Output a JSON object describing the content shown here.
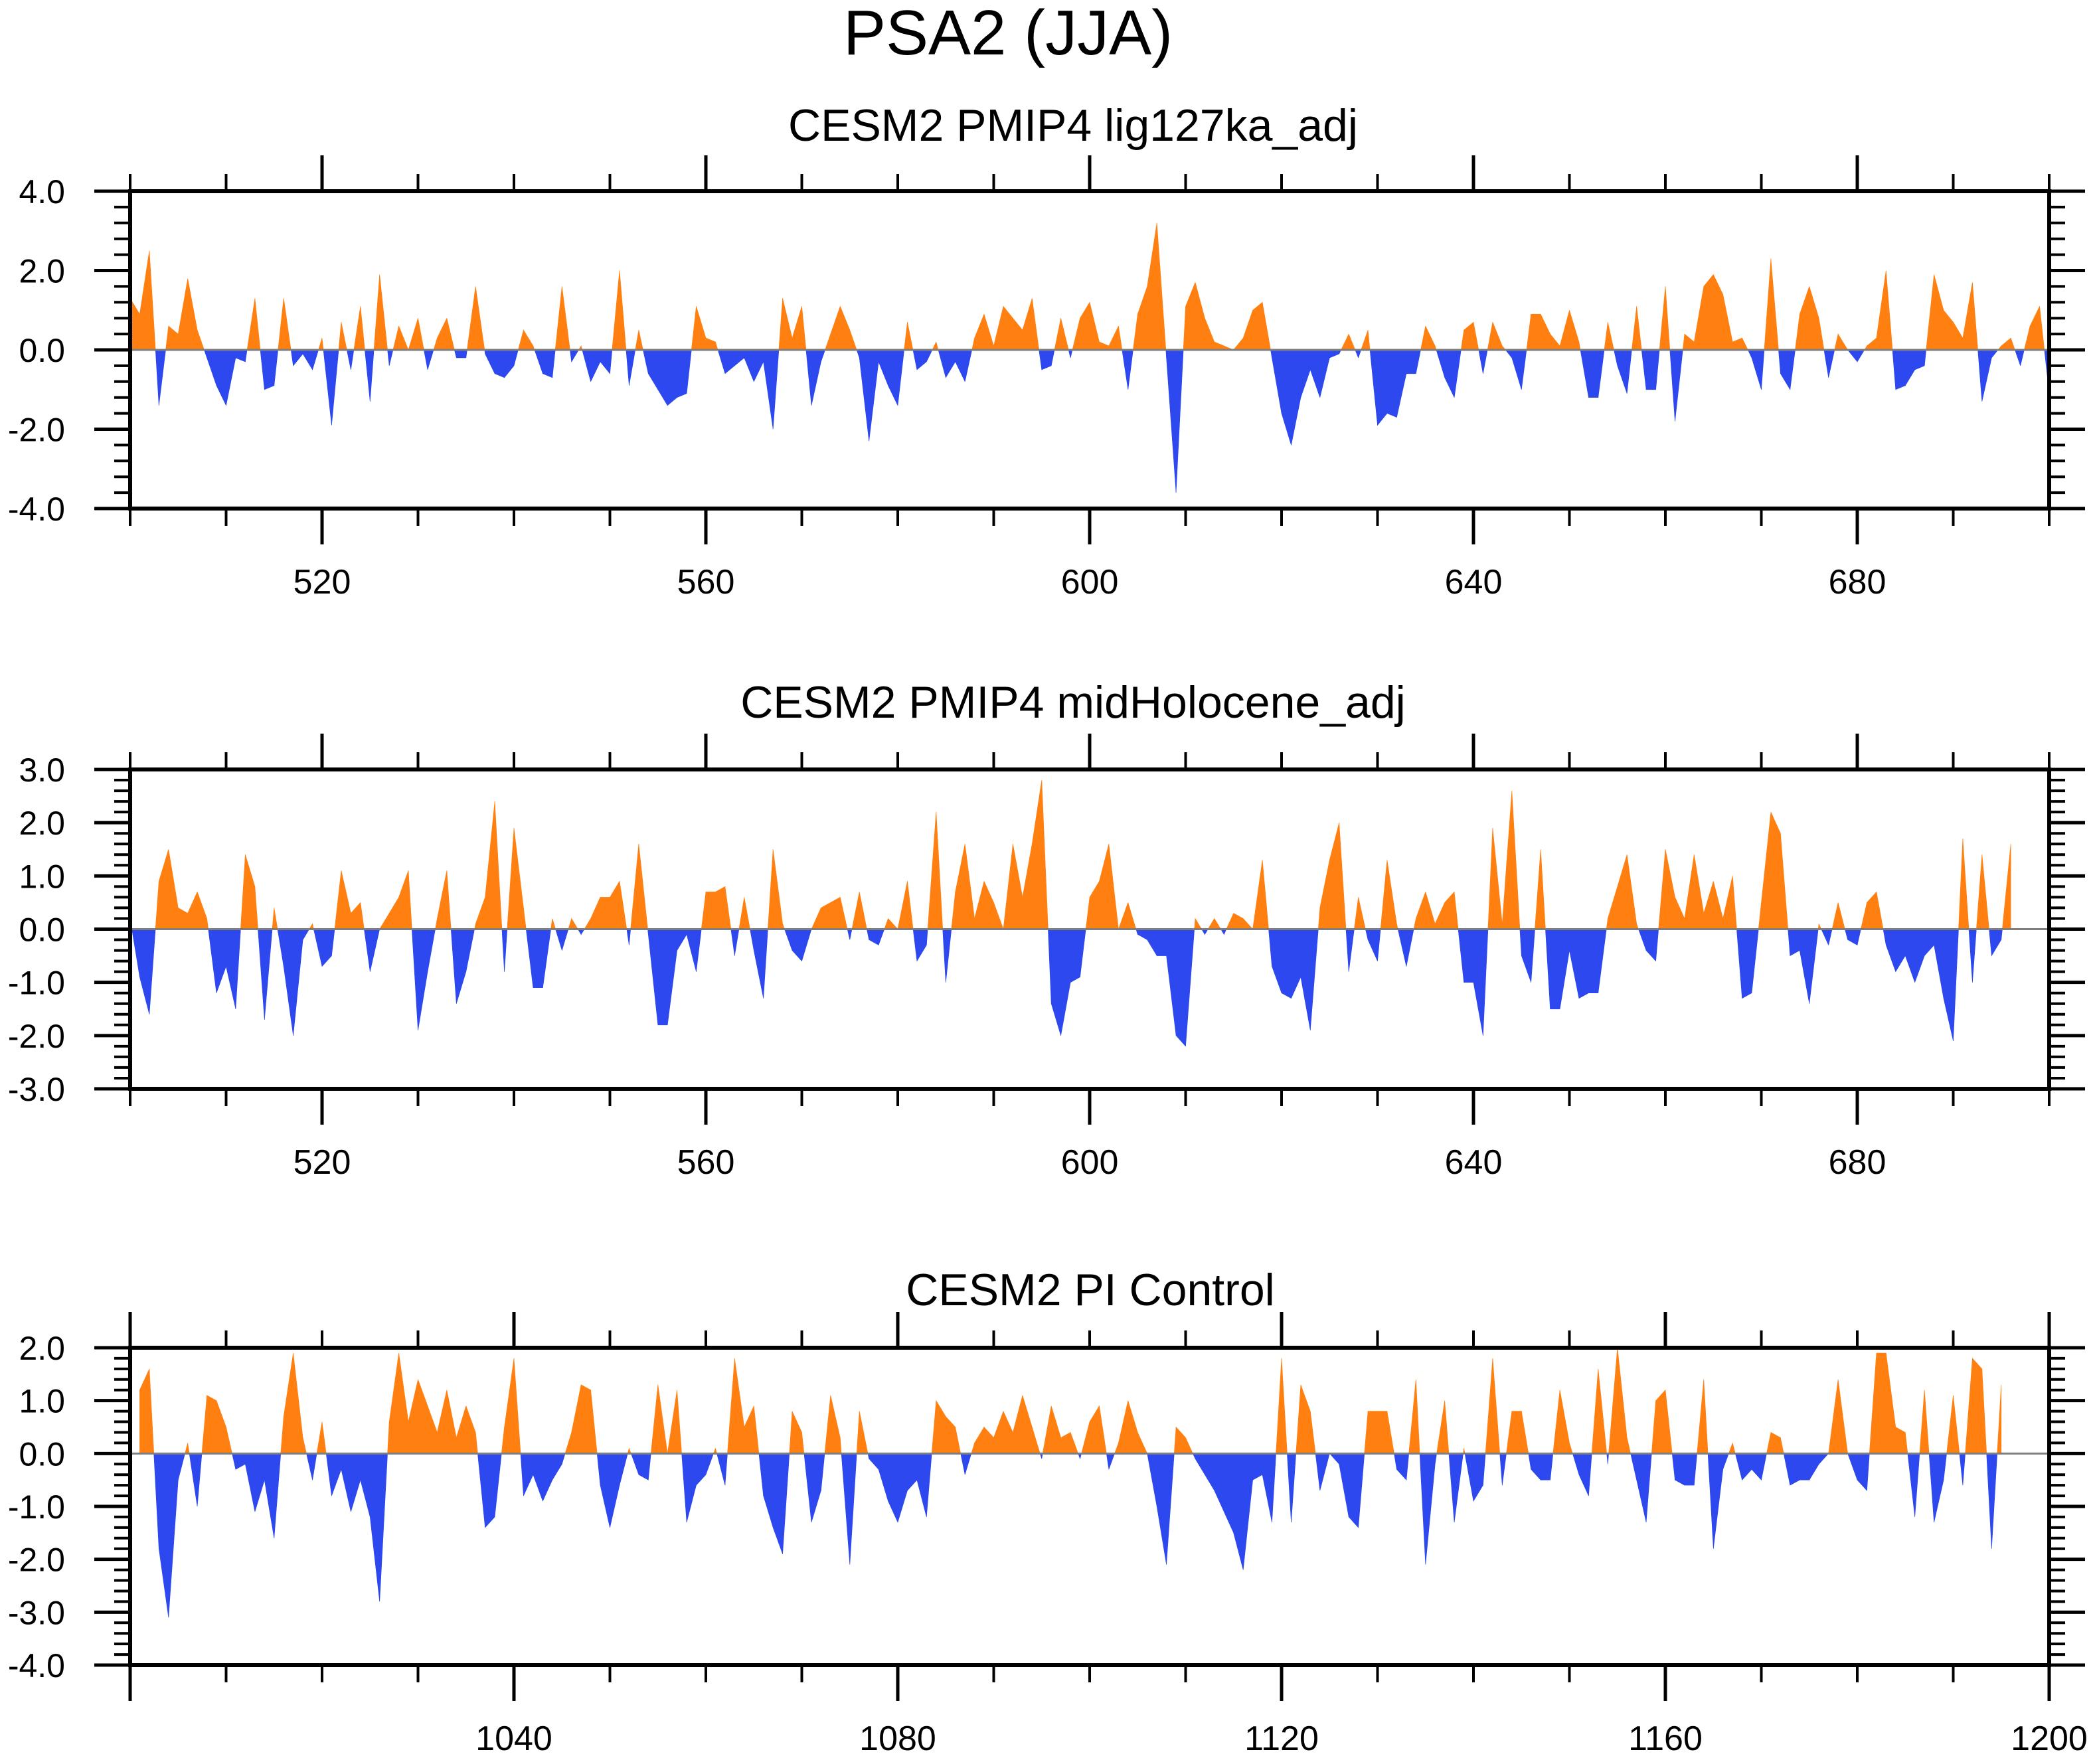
{
  "title": "PSA2 (JJA)",
  "colors": {
    "positive": "#FF8011",
    "negative": "#2C48EE",
    "zero_line": "#7F7F7F",
    "axis": "#000000"
  },
  "chart_data": [
    {
      "type": "area",
      "title": "CESM2 PMIP4 lig127ka_adj",
      "xlabel": "",
      "ylabel": "",
      "xlim": [
        500,
        700
      ],
      "ylim": [
        -4,
        4
      ],
      "xticks": [
        520,
        560,
        600,
        640,
        680
      ],
      "xtick_labels": [
        "520",
        "560",
        "600",
        "640",
        "680"
      ],
      "yticks": [
        4,
        2,
        0,
        -2,
        -4
      ],
      "ytick_labels": [
        "4.0",
        "2.0",
        "0.0",
        "-2.0",
        "-4.0"
      ],
      "x_start": 500,
      "x_step": 1,
      "values": [
        1.3,
        0.9,
        2.5,
        -1.4,
        0.6,
        0.4,
        1.8,
        0.5,
        -0.2,
        -0.9,
        -1.4,
        -0.2,
        -0.3,
        1.3,
        -1.0,
        -0.9,
        1.3,
        -0.4,
        -0.1,
        -0.5,
        0.3,
        -1.9,
        0.7,
        -0.5,
        1.1,
        -1.3,
        1.9,
        -0.4,
        0.6,
        0.0,
        0.8,
        -0.5,
        0.3,
        0.8,
        -0.2,
        -0.2,
        1.6,
        -0.1,
        -0.6,
        -0.7,
        -0.4,
        0.5,
        0.1,
        -0.6,
        -0.7,
        1.6,
        -0.3,
        0.1,
        -0.8,
        -0.3,
        -0.6,
        2.0,
        -0.9,
        0.5,
        -0.6,
        -1.0,
        -1.4,
        -1.2,
        -1.1,
        1.1,
        0.3,
        0.2,
        -0.6,
        -0.4,
        -0.2,
        -0.8,
        -0.3,
        -2.0,
        1.3,
        0.3,
        1.1,
        -1.4,
        -0.3,
        0.4,
        1.1,
        0.5,
        -0.2,
        -2.3,
        -0.3,
        -0.9,
        -1.4,
        0.7,
        -0.5,
        -0.3,
        0.2,
        -0.7,
        -0.3,
        -0.8,
        0.3,
        0.9,
        0.1,
        1.1,
        0.8,
        0.5,
        1.3,
        -0.5,
        -0.4,
        0.8,
        -0.2,
        0.8,
        1.2,
        0.2,
        0.1,
        0.6,
        -1.0,
        0.9,
        1.6,
        3.2,
        -0.2,
        -3.6,
        1.1,
        1.7,
        0.8,
        0.2,
        0.1,
        0.0,
        0.3,
        1.0,
        1.2,
        -0.2,
        -1.6,
        -2.4,
        -1.2,
        -0.5,
        -1.2,
        -0.2,
        -0.1,
        0.4,
        -0.2,
        0.5,
        -1.9,
        -1.6,
        -1.7,
        -0.6,
        -0.6,
        0.6,
        0.1,
        -0.7,
        -1.2,
        0.5,
        0.7,
        -0.6,
        0.7,
        0.1,
        -0.2,
        -1.0,
        0.9,
        0.9,
        0.4,
        0.1,
        1.0,
        0.2,
        -1.2,
        -1.2,
        0.7,
        -0.4,
        -1.1,
        1.1,
        -1.0,
        -1.0,
        1.6,
        -1.8,
        0.4,
        0.2,
        1.6,
        1.9,
        1.4,
        0.2,
        0.3,
        -0.2,
        -1.0,
        2.3,
        -0.6,
        -1.0,
        0.9,
        1.6,
        0.8,
        -0.7,
        0.4,
        0.0,
        -0.3,
        0.1,
        0.3,
        2.0,
        -1.0,
        -0.9,
        -0.5,
        -0.4,
        1.9,
        1.0,
        0.7,
        0.3,
        1.7,
        -1.3,
        -0.2,
        0.1,
        0.3,
        -0.4,
        0.6,
        1.1,
        -1.1
      ]
    },
    {
      "type": "area",
      "title": "CESM2 PMIP4 midHolocene_adj",
      "xlabel": "",
      "ylabel": "",
      "xlim": [
        500,
        700
      ],
      "ylim": [
        -3,
        3
      ],
      "xticks": [
        520,
        560,
        600,
        640,
        680
      ],
      "xtick_labels": [
        "520",
        "560",
        "600",
        "640",
        "680"
      ],
      "yticks": [
        3,
        2,
        1,
        0,
        -1,
        -2,
        -3
      ],
      "ytick_labels": [
        "3.0",
        "2.0",
        "1.0",
        "0.0",
        "-1.0",
        "-2.0",
        "-3.0"
      ],
      "x_start": 500,
      "x_step": 1,
      "values": [
        0.2,
        -0.9,
        -1.6,
        0.9,
        1.5,
        0.4,
        0.3,
        0.7,
        0.2,
        -1.2,
        -0.7,
        -1.5,
        1.4,
        0.8,
        -1.7,
        0.4,
        -0.7,
        -2.0,
        -0.2,
        0.1,
        -0.7,
        -0.5,
        1.1,
        0.3,
        0.5,
        -0.8,
        0.0,
        0.3,
        0.6,
        1.1,
        -1.9,
        -0.8,
        0.2,
        1.1,
        -1.4,
        -0.8,
        0.1,
        0.6,
        2.4,
        -0.8,
        1.9,
        0.4,
        -1.1,
        -1.1,
        0.2,
        -0.4,
        0.2,
        -0.1,
        0.2,
        0.6,
        0.6,
        0.9,
        -0.3,
        1.6,
        -0.1,
        -1.8,
        -1.8,
        -0.4,
        -0.1,
        -0.8,
        0.7,
        0.7,
        0.8,
        -0.5,
        0.6,
        -0.4,
        -1.3,
        1.5,
        0.1,
        -0.4,
        -0.6,
        0.0,
        0.4,
        0.5,
        0.6,
        -0.2,
        0.7,
        -0.2,
        -0.3,
        0.2,
        0.0,
        0.9,
        -0.6,
        -0.3,
        2.2,
        -1.0,
        0.7,
        1.6,
        0.2,
        0.9,
        0.5,
        0.0,
        1.6,
        0.6,
        1.6,
        2.8,
        -1.4,
        -2.0,
        -1.0,
        -0.9,
        0.6,
        0.9,
        1.6,
        0.0,
        0.5,
        -0.1,
        -0.2,
        -0.5,
        -0.5,
        -2.0,
        -2.2,
        0.2,
        -0.1,
        0.2,
        -0.1,
        0.3,
        0.2,
        0.0,
        1.3,
        -0.7,
        -1.2,
        -1.3,
        -0.9,
        -1.9,
        0.4,
        1.3,
        2.0,
        -0.8,
        0.6,
        -0.2,
        -0.6,
        1.3,
        0.1,
        -0.7,
        0.2,
        0.7,
        0.1,
        0.5,
        0.7,
        -1.0,
        -1.0,
        -2.0,
        1.9,
        0.1,
        2.6,
        -0.5,
        -1.0,
        1.5,
        -1.5,
        -1.5,
        -0.4,
        -1.3,
        -1.2,
        -1.2,
        0.2,
        0.8,
        1.4,
        0.1,
        -0.4,
        -0.6,
        1.5,
        0.6,
        0.2,
        1.4,
        0.3,
        0.9,
        0.2,
        1.0,
        -1.3,
        -1.2,
        0.5,
        2.2,
        1.8,
        -0.5,
        -0.4,
        -1.4,
        0.1,
        -0.3,
        0.5,
        -0.2,
        -0.3,
        0.5,
        0.7,
        -0.3,
        -0.8,
        -0.5,
        -1.0,
        -0.5,
        -0.3,
        -1.3,
        -2.1,
        1.7,
        -1.0,
        1.4,
        -0.5,
        -0.2,
        1.6
      ]
    },
    {
      "type": "area",
      "title": "CESM2 PI Control",
      "xlabel": "",
      "ylabel": "",
      "xlim": [
        1000,
        1200
      ],
      "ylim": [
        -4,
        2
      ],
      "xticks": [
        1040,
        1080,
        1120,
        1160,
        1200
      ],
      "xtick_labels": [
        "1040",
        "1080",
        "1120",
        "1160",
        "1200"
      ],
      "yticks": [
        2,
        1,
        0,
        -1,
        -2,
        -3,
        -4
      ],
      "ytick_labels": [
        "2.0",
        "1.0",
        "0.0",
        "-1.0",
        "-2.0",
        "-3.0",
        "-4.0"
      ],
      "x_start": 1001,
      "x_step": 1,
      "values": [
        1.2,
        1.6,
        -1.8,
        -3.1,
        -0.5,
        0.2,
        -1.0,
        1.1,
        1.0,
        0.5,
        -0.3,
        -0.2,
        -1.1,
        -0.5,
        -1.6,
        0.7,
        1.9,
        0.3,
        -0.5,
        0.6,
        -0.8,
        -0.3,
        -1.1,
        -0.5,
        -1.2,
        -2.8,
        0.6,
        1.9,
        0.6,
        1.4,
        0.9,
        0.4,
        1.2,
        0.3,
        0.9,
        0.4,
        -1.4,
        -1.2,
        0.5,
        1.8,
        -0.8,
        -0.4,
        -0.9,
        -0.5,
        -0.2,
        0.4,
        1.3,
        1.2,
        -0.6,
        -1.4,
        -0.6,
        0.1,
        -0.4,
        -0.5,
        1.3,
        0.0,
        1.2,
        -1.3,
        -0.6,
        -0.4,
        0.1,
        -0.6,
        1.8,
        0.5,
        0.9,
        -0.8,
        -1.4,
        -1.9,
        0.8,
        0.4,
        -1.3,
        -0.7,
        1.1,
        0.3,
        -2.1,
        0.8,
        -0.1,
        -0.3,
        -0.9,
        -1.3,
        -0.7,
        -0.5,
        -1.2,
        1.0,
        0.7,
        0.5,
        -0.4,
        0.2,
        0.5,
        0.3,
        0.8,
        0.4,
        1.1,
        0.5,
        -0.1,
        0.9,
        0.3,
        0.4,
        -0.1,
        0.6,
        0.9,
        -0.3,
        0.2,
        1.0,
        0.4,
        0.0,
        -1.0,
        -2.1,
        0.5,
        0.3,
        -0.1,
        -0.4,
        -0.7,
        -1.1,
        -1.5,
        -2.2,
        -0.5,
        -0.4,
        -1.3,
        1.8,
        -1.3,
        1.3,
        0.8,
        -0.7,
        0.0,
        -0.2,
        -1.2,
        -1.4,
        0.8,
        0.8,
        0.8,
        -0.3,
        -0.5,
        1.4,
        -2.1,
        -0.2,
        1.0,
        -1.3,
        0.1,
        -0.9,
        -0.6,
        1.8,
        -0.6,
        0.8,
        0.8,
        -0.3,
        -0.5,
        -0.5,
        1.2,
        0.2,
        -0.4,
        -0.8,
        1.6,
        -0.2,
        2.0,
        0.3,
        -0.5,
        -1.3,
        1.0,
        1.2,
        -0.5,
        -0.6,
        -0.6,
        1.4,
        -1.8,
        -0.3,
        0.2,
        -0.5,
        -0.3,
        -0.5,
        0.4,
        0.3,
        -0.6,
        -0.5,
        -0.5,
        -0.2,
        0.0,
        1.4,
        0.0,
        -0.5,
        -0.7,
        1.9,
        1.9,
        0.5,
        0.4,
        -1.2,
        1.2,
        -1.3,
        -0.5,
        1.1,
        -0.6,
        1.8,
        1.6,
        -1.8,
        1.3
      ]
    }
  ]
}
